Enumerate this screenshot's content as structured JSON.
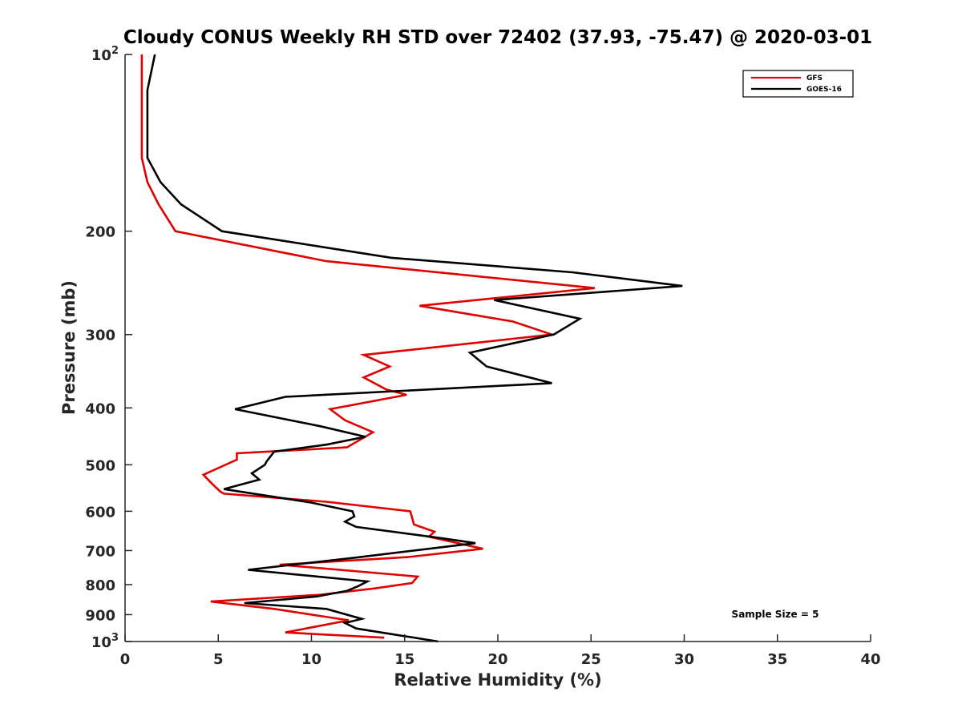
{
  "chart_data": {
    "type": "line",
    "title": "Cloudy CONUS Weekly RH STD over 72402 (37.93, -75.47) @ 2020-03-01",
    "xlabel": "Relative Humidity (%)",
    "ylabel": "Pressure (mb)",
    "xlim": [
      0,
      40
    ],
    "ylim": [
      100,
      1000
    ],
    "y_scale": "log",
    "y_reversed": true,
    "grid": false,
    "legend_position": "top-right",
    "x_ticks": [
      0,
      5,
      10,
      15,
      20,
      25,
      30,
      35,
      40
    ],
    "x_tick_labels": [
      "0",
      "5",
      "10",
      "15",
      "20",
      "25",
      "30",
      "35",
      "40"
    ],
    "y_ticks": [
      100,
      200,
      300,
      400,
      500,
      600,
      700,
      800,
      900,
      1000
    ],
    "y_tick_labels": [
      {
        "base": "10",
        "exp": "2"
      },
      {
        "base": "200",
        "exp": ""
      },
      {
        "base": "300",
        "exp": ""
      },
      {
        "base": "400",
        "exp": ""
      },
      {
        "base": "500",
        "exp": ""
      },
      {
        "base": "600",
        "exp": ""
      },
      {
        "base": "700",
        "exp": ""
      },
      {
        "base": "800",
        "exp": ""
      },
      {
        "base": "900",
        "exp": ""
      },
      {
        "base": "10",
        "exp": "3"
      }
    ],
    "annotation": "Sample Size = 5",
    "series": [
      {
        "name": "GFS",
        "color": "#e00000",
        "points": [
          [
            0.9,
            100
          ],
          [
            0.9,
            125
          ],
          [
            0.9,
            150
          ],
          [
            1.2,
            165
          ],
          [
            1.8,
            180
          ],
          [
            2.7,
            200
          ],
          [
            10.8,
            225
          ],
          [
            25.2,
            250
          ],
          [
            15.8,
            268
          ],
          [
            20.8,
            285
          ],
          [
            22.9,
            300
          ],
          [
            12.8,
            325
          ],
          [
            14.2,
            340
          ],
          [
            12.8,
            355
          ],
          [
            14.0,
            372
          ],
          [
            15.1,
            380
          ],
          [
            11.0,
            402
          ],
          [
            11.8,
            420
          ],
          [
            13.3,
            440
          ],
          [
            11.9,
            467
          ],
          [
            6.0,
            478
          ],
          [
            6.0,
            490
          ],
          [
            4.2,
            520
          ],
          [
            4.7,
            540
          ],
          [
            5.1,
            555
          ],
          [
            5.3,
            560
          ],
          [
            10.8,
            578
          ],
          [
            15.3,
            600
          ],
          [
            15.4,
            615
          ],
          [
            15.5,
            632
          ],
          [
            16.6,
            650
          ],
          [
            16.3,
            663
          ],
          [
            19.2,
            695
          ],
          [
            15.2,
            718
          ],
          [
            8.3,
            740
          ],
          [
            15.7,
            775
          ],
          [
            15.4,
            795
          ],
          [
            13.4,
            812
          ],
          [
            10.5,
            832
          ],
          [
            4.6,
            855
          ],
          [
            8.0,
            880
          ],
          [
            12.0,
            920
          ],
          [
            8.6,
            965
          ],
          [
            13.9,
            985
          ]
        ]
      },
      {
        "name": "GOES-16",
        "color": "#000000",
        "points": [
          [
            1.6,
            100
          ],
          [
            1.2,
            115
          ],
          [
            1.2,
            150
          ],
          [
            1.9,
            165
          ],
          [
            3.0,
            180
          ],
          [
            5.2,
            200
          ],
          [
            14.3,
            222
          ],
          [
            24.0,
            235
          ],
          [
            29.9,
            248
          ],
          [
            19.8,
            262
          ],
          [
            24.4,
            282
          ],
          [
            23.0,
            300
          ],
          [
            18.5,
            322
          ],
          [
            19.4,
            340
          ],
          [
            22.9,
            363
          ],
          [
            8.6,
            383
          ],
          [
            5.9,
            402
          ],
          [
            10.5,
            430
          ],
          [
            12.9,
            448
          ],
          [
            10.8,
            462
          ],
          [
            8.0,
            475
          ],
          [
            7.6,
            493
          ],
          [
            7.5,
            500
          ],
          [
            6.8,
            517
          ],
          [
            7.2,
            530
          ],
          [
            5.3,
            550
          ],
          [
            10.0,
            580
          ],
          [
            12.2,
            600
          ],
          [
            12.3,
            612
          ],
          [
            11.8,
            625
          ],
          [
            12.4,
            638
          ],
          [
            17.0,
            667
          ],
          [
            18.8,
            680
          ],
          [
            12.3,
            720
          ],
          [
            6.6,
            755
          ],
          [
            13.0,
            790
          ],
          [
            12.5,
            805
          ],
          [
            11.9,
            820
          ],
          [
            10.3,
            838
          ],
          [
            6.4,
            860
          ],
          [
            10.8,
            880
          ],
          [
            12.7,
            915
          ],
          [
            11.8,
            930
          ],
          [
            12.4,
            950
          ],
          [
            16.8,
            1000
          ]
        ]
      }
    ]
  }
}
